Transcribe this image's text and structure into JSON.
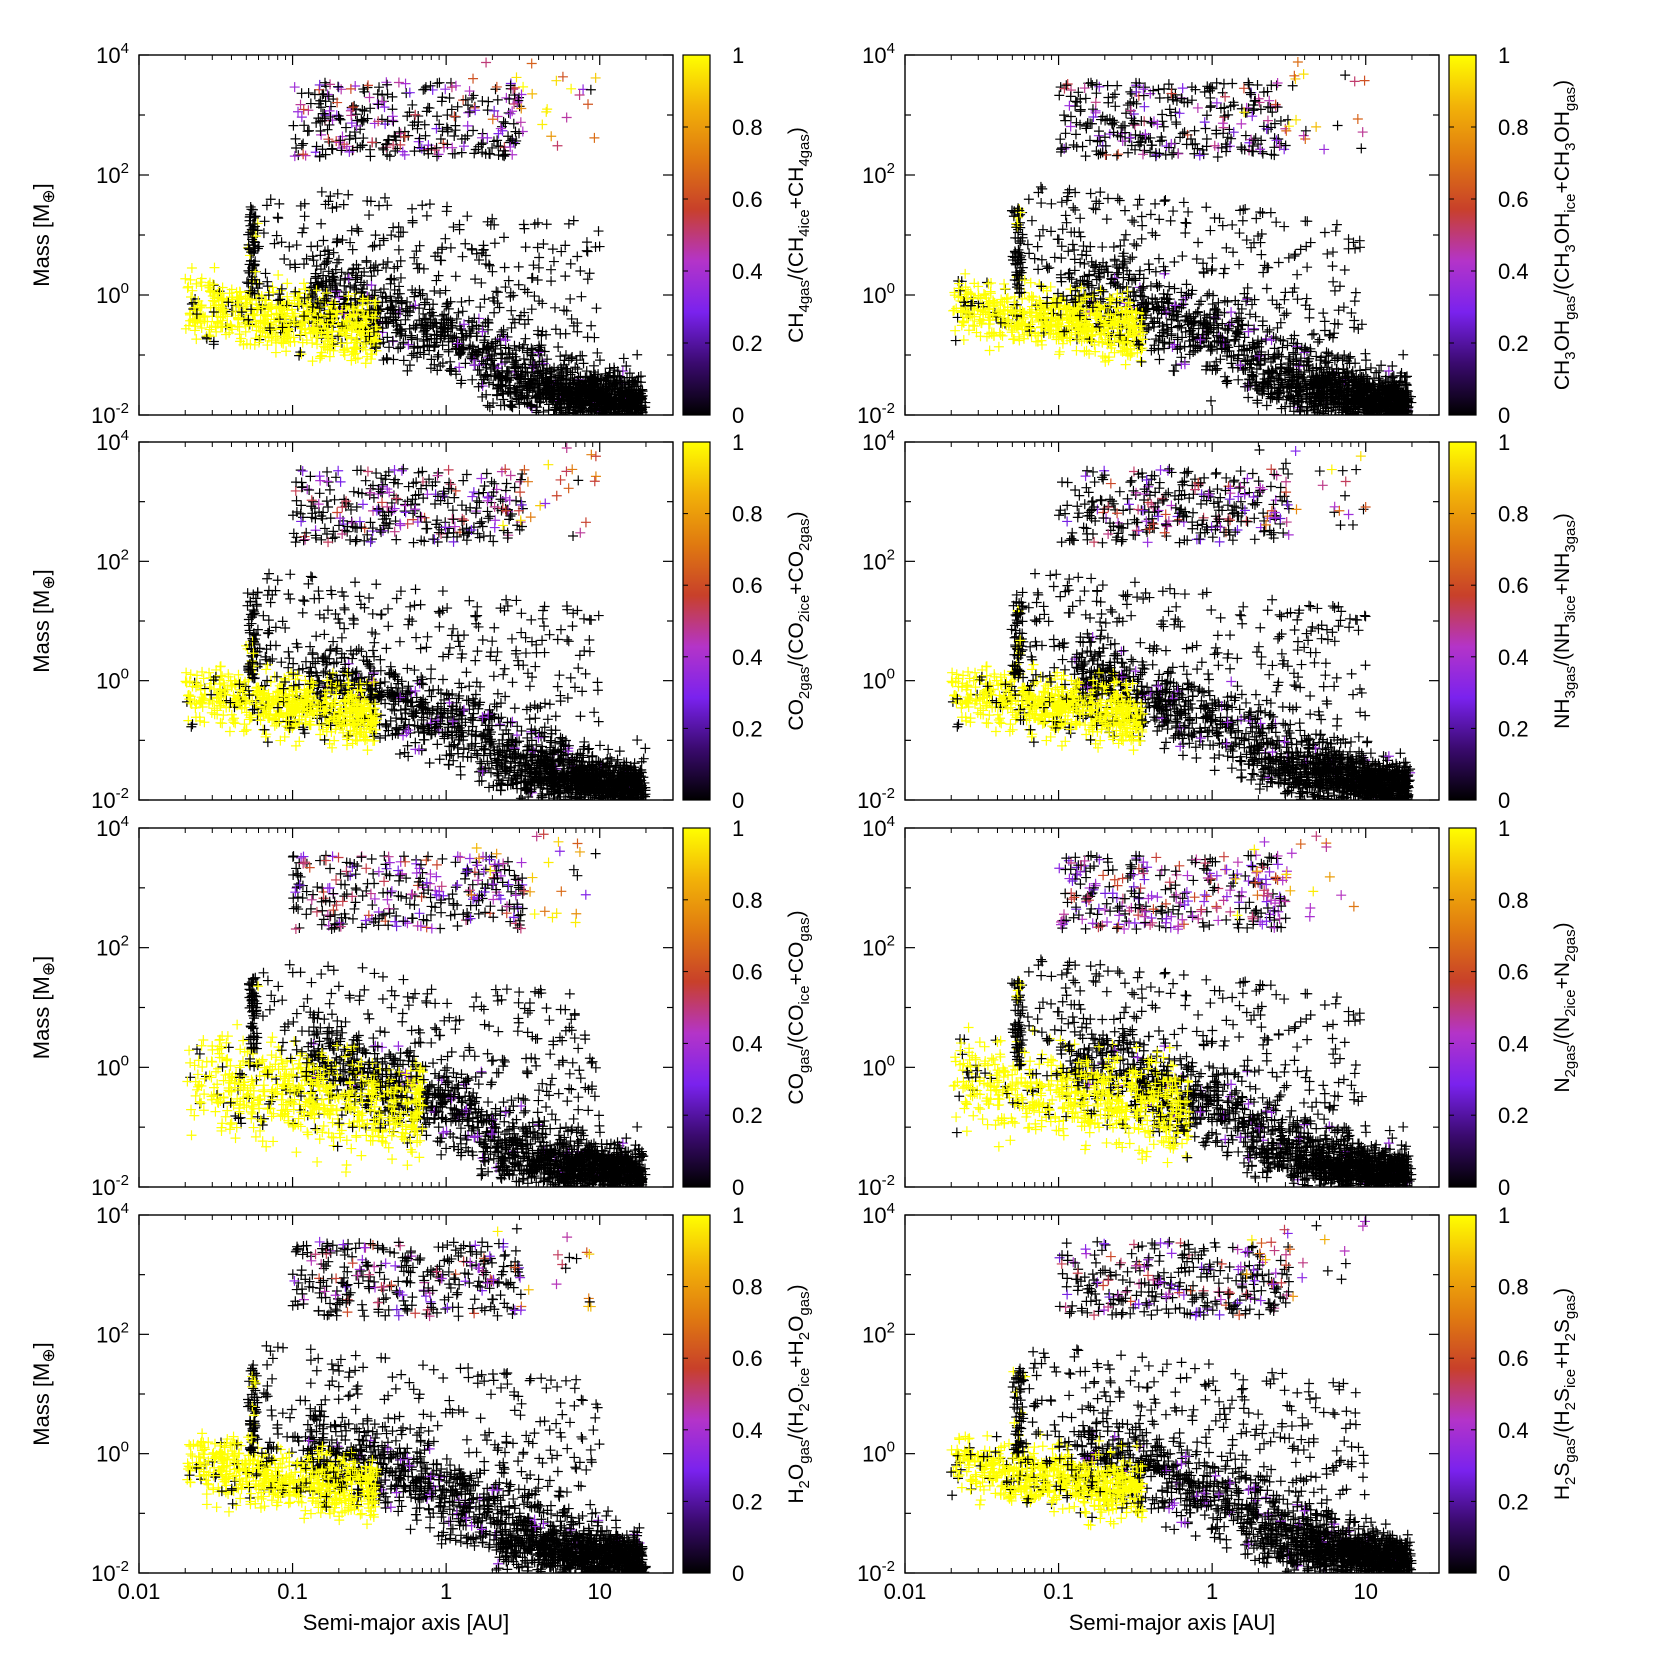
{
  "figure": {
    "x_axis_title": "Semi-major axis [AU]",
    "y_axis_title": "Mass [M",
    "y_axis_symbol": "⊕",
    "y_axis_close": "]",
    "x_tick_labels": [
      "0.01",
      "0.1",
      "1",
      "10"
    ],
    "y_tick_labels": [
      {
        "base": "10",
        "exp": "-2"
      },
      {
        "base": "10",
        "exp": "0"
      },
      {
        "base": "10",
        "exp": "2"
      },
      {
        "base": "10",
        "exp": "4"
      }
    ],
    "colorbar_tick_labels": [
      "0",
      "0.2",
      "0.4",
      "0.6",
      "0.8",
      "1"
    ],
    "colormap": [
      "#000000",
      "#3a0a6e",
      "#7a22ee",
      "#b434c8",
      "#c8402a",
      "#e07a10",
      "#f2b208",
      "#ffff00"
    ]
  },
  "chart_data": [
    {
      "type": "scatter",
      "panel": "top-left",
      "colorbar_label": [
        {
          "t": "CH"
        },
        {
          "t": "4gas",
          "sub": true
        },
        {
          "t": "/(CH"
        },
        {
          "t": "4ice",
          "sub": true
        },
        {
          "t": "+CH"
        },
        {
          "t": "4gas",
          "sub": true
        },
        {
          "t": ")"
        }
      ],
      "xlim": [
        0.01,
        30
      ],
      "ylim": [
        0.01,
        10000
      ],
      "xscale": "log",
      "yscale": "log",
      "marker": "+",
      "color_range": [
        0,
        1
      ],
      "regions": [
        {
          "x": [
            0.02,
            0.35
          ],
          "y": [
            0.1,
            3
          ],
          "fraction": 1.0
        },
        {
          "x": [
            0.1,
            3
          ],
          "y": [
            200,
            8000
          ],
          "fraction": 0.3
        },
        {
          "x": [
            1.5,
            10
          ],
          "y": [
            1000,
            10000
          ],
          "fraction": 0.9
        },
        {
          "x": [
            0.3,
            20
          ],
          "y": [
            0.01,
            10
          ],
          "fraction": 0.0
        }
      ]
    },
    {
      "type": "scatter",
      "panel": "top-right",
      "colorbar_label": [
        {
          "t": "CH"
        },
        {
          "t": "3",
          "sub": true
        },
        {
          "t": "OH"
        },
        {
          "t": "gas",
          "sub": true
        },
        {
          "t": "/(CH"
        },
        {
          "t": "3",
          "sub": true
        },
        {
          "t": "OH"
        },
        {
          "t": "ice",
          "sub": true
        },
        {
          "t": "+CH"
        },
        {
          "t": "3",
          "sub": true
        },
        {
          "t": "OH"
        },
        {
          "t": "gas",
          "sub": true
        },
        {
          "t": ")"
        }
      ],
      "xlim": [
        0.01,
        30
      ],
      "ylim": [
        0.01,
        10000
      ],
      "xscale": "log",
      "yscale": "log",
      "marker": "+",
      "color_range": [
        0,
        1
      ],
      "regions": [
        {
          "x": [
            0.02,
            0.3
          ],
          "y": [
            0.1,
            3
          ],
          "fraction": 1.0
        },
        {
          "x": [
            0.1,
            3
          ],
          "y": [
            200,
            8000
          ],
          "fraction": 0.25
        },
        {
          "x": [
            1.5,
            10
          ],
          "y": [
            1000,
            10000
          ],
          "fraction": 0.6
        },
        {
          "x": [
            0.3,
            20
          ],
          "y": [
            0.01,
            10
          ],
          "fraction": 0.0
        }
      ]
    },
    {
      "type": "scatter",
      "panel": "second-left",
      "colorbar_label": [
        {
          "t": "CO"
        },
        {
          "t": "2gas",
          "sub": true
        },
        {
          "t": "/(CO"
        },
        {
          "t": "2ice",
          "sub": true
        },
        {
          "t": "+CO"
        },
        {
          "t": "2gas",
          "sub": true
        },
        {
          "t": ")"
        }
      ],
      "xlim": [
        0.01,
        30
      ],
      "ylim": [
        0.01,
        10000
      ],
      "xscale": "log",
      "yscale": "log",
      "marker": "+",
      "color_range": [
        0,
        1
      ],
      "regions": [
        {
          "x": [
            0.02,
            0.3
          ],
          "y": [
            0.1,
            3
          ],
          "fraction": 1.0
        },
        {
          "x": [
            0.1,
            3
          ],
          "y": [
            200,
            8000
          ],
          "fraction": 0.3
        },
        {
          "x": [
            1.5,
            10
          ],
          "y": [
            1000,
            10000
          ],
          "fraction": 0.7
        },
        {
          "x": [
            0.3,
            20
          ],
          "y": [
            0.01,
            10
          ],
          "fraction": 0.0
        }
      ]
    },
    {
      "type": "scatter",
      "panel": "second-right",
      "colorbar_label": [
        {
          "t": "NH"
        },
        {
          "t": "3gas",
          "sub": true
        },
        {
          "t": "/(NH"
        },
        {
          "t": "3ice",
          "sub": true
        },
        {
          "t": "+NH"
        },
        {
          "t": "3gas",
          "sub": true
        },
        {
          "t": ")"
        }
      ],
      "xlim": [
        0.01,
        30
      ],
      "ylim": [
        0.01,
        10000
      ],
      "xscale": "log",
      "yscale": "log",
      "marker": "+",
      "color_range": [
        0,
        1
      ],
      "regions": [
        {
          "x": [
            0.02,
            0.3
          ],
          "y": [
            0.1,
            3
          ],
          "fraction": 1.0
        },
        {
          "x": [
            0.1,
            3
          ],
          "y": [
            200,
            8000
          ],
          "fraction": 0.25
        },
        {
          "x": [
            1.5,
            10
          ],
          "y": [
            1000,
            10000
          ],
          "fraction": 0.6
        },
        {
          "x": [
            0.3,
            20
          ],
          "y": [
            0.01,
            10
          ],
          "fraction": 0.0
        }
      ]
    },
    {
      "type": "scatter",
      "panel": "third-left",
      "colorbar_label": [
        {
          "t": "CO"
        },
        {
          "t": "gas",
          "sub": true
        },
        {
          "t": "/(CO"
        },
        {
          "t": "ice",
          "sub": true
        },
        {
          "t": "+CO"
        },
        {
          "t": "gas",
          "sub": true
        },
        {
          "t": ")"
        }
      ],
      "xlim": [
        0.01,
        30
      ],
      "ylim": [
        0.01,
        10000
      ],
      "xscale": "log",
      "yscale": "log",
      "marker": "+",
      "color_range": [
        0,
        1
      ],
      "regions": [
        {
          "x": [
            0.02,
            0.6
          ],
          "y": [
            0.05,
            3
          ],
          "fraction": 1.0
        },
        {
          "x": [
            0.1,
            3
          ],
          "y": [
            200,
            8000
          ],
          "fraction": 0.35
        },
        {
          "x": [
            1.5,
            10
          ],
          "y": [
            1000,
            10000
          ],
          "fraction": 0.85
        },
        {
          "x": [
            0.3,
            20
          ],
          "y": [
            0.01,
            10
          ],
          "fraction": 0.0
        }
      ]
    },
    {
      "type": "scatter",
      "panel": "third-right",
      "colorbar_label": [
        {
          "t": "N"
        },
        {
          "t": "2gas",
          "sub": true
        },
        {
          "t": "/(N"
        },
        {
          "t": "2ice",
          "sub": true
        },
        {
          "t": "+N"
        },
        {
          "t": "2gas",
          "sub": true
        },
        {
          "t": ")"
        }
      ],
      "xlim": [
        0.01,
        30
      ],
      "ylim": [
        0.01,
        10000
      ],
      "xscale": "log",
      "yscale": "log",
      "marker": "+",
      "color_range": [
        0,
        1
      ],
      "regions": [
        {
          "x": [
            0.02,
            0.8
          ],
          "y": [
            0.05,
            10
          ],
          "fraction": 1.0
        },
        {
          "x": [
            0.1,
            3
          ],
          "y": [
            200,
            8000
          ],
          "fraction": 0.5
        },
        {
          "x": [
            1.5,
            10
          ],
          "y": [
            1000,
            10000
          ],
          "fraction": 0.85
        },
        {
          "x": [
            0.3,
            20
          ],
          "y": [
            0.01,
            10
          ],
          "fraction": 0.0
        }
      ]
    },
    {
      "type": "scatter",
      "panel": "bottom-left",
      "colorbar_label": [
        {
          "t": "H"
        },
        {
          "t": "2",
          "sub": true
        },
        {
          "t": "O"
        },
        {
          "t": "gas",
          "sub": true
        },
        {
          "t": "/(H"
        },
        {
          "t": "2",
          "sub": true
        },
        {
          "t": "O"
        },
        {
          "t": "ice",
          "sub": true
        },
        {
          "t": "+H"
        },
        {
          "t": "2",
          "sub": true
        },
        {
          "t": "O"
        },
        {
          "t": "gas",
          "sub": true
        },
        {
          "t": ")"
        }
      ],
      "xlim": [
        0.01,
        30
      ],
      "ylim": [
        0.01,
        10000
      ],
      "xscale": "log",
      "yscale": "log",
      "marker": "+",
      "color_range": [
        0,
        1
      ],
      "regions": [
        {
          "x": [
            0.02,
            0.3
          ],
          "y": [
            0.1,
            3
          ],
          "fraction": 1.0
        },
        {
          "x": [
            0.1,
            3
          ],
          "y": [
            200,
            8000
          ],
          "fraction": 0.2
        },
        {
          "x": [
            1.5,
            10
          ],
          "y": [
            1000,
            10000
          ],
          "fraction": 0.8
        },
        {
          "x": [
            0.3,
            20
          ],
          "y": [
            0.01,
            10
          ],
          "fraction": 0.0
        }
      ]
    },
    {
      "type": "scatter",
      "panel": "bottom-right",
      "colorbar_label": [
        {
          "t": "H"
        },
        {
          "t": "2",
          "sub": true
        },
        {
          "t": "S"
        },
        {
          "t": "gas",
          "sub": true
        },
        {
          "t": "/(H"
        },
        {
          "t": "2",
          "sub": true
        },
        {
          "t": "S"
        },
        {
          "t": "ice",
          "sub": true
        },
        {
          "t": "+H"
        },
        {
          "t": "2",
          "sub": true
        },
        {
          "t": "S"
        },
        {
          "t": "gas",
          "sub": true
        },
        {
          "t": ")"
        }
      ],
      "xlim": [
        0.01,
        30
      ],
      "ylim": [
        0.01,
        10000
      ],
      "xscale": "log",
      "yscale": "log",
      "marker": "+",
      "color_range": [
        0,
        1
      ],
      "regions": [
        {
          "x": [
            0.02,
            0.3
          ],
          "y": [
            0.1,
            3
          ],
          "fraction": 1.0
        },
        {
          "x": [
            0.1,
            3
          ],
          "y": [
            200,
            8000
          ],
          "fraction": 0.25
        },
        {
          "x": [
            1.5,
            10
          ],
          "y": [
            1000,
            10000
          ],
          "fraction": 0.55
        },
        {
          "x": [
            0.3,
            20
          ],
          "y": [
            0.01,
            10
          ],
          "fraction": 0.0
        }
      ]
    }
  ]
}
